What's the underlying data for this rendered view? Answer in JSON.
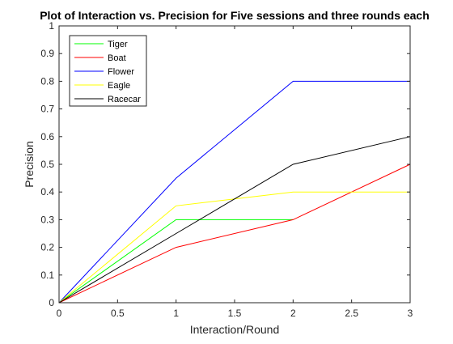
{
  "chart_data": {
    "type": "line",
    "title": "Plot of Interaction vs. Precision for Five sessions and three rounds each",
    "xlabel": "Interaction/Round",
    "ylabel": "Precision",
    "xlim": [
      0,
      3
    ],
    "ylim": [
      0,
      1
    ],
    "x_ticks": [
      0,
      0.5,
      1,
      1.5,
      2,
      2.5,
      3
    ],
    "x_tick_labels": [
      "0",
      "0.5",
      "1",
      "1.5",
      "2",
      "2.5",
      "3"
    ],
    "y_ticks": [
      0,
      0.1,
      0.2,
      0.3,
      0.4,
      0.5,
      0.6,
      0.7,
      0.8,
      0.9,
      1
    ],
    "y_tick_labels": [
      "0",
      "0.1",
      "0.2",
      "0.3",
      "0.4",
      "0.5",
      "0.6",
      "0.7",
      "0.8",
      "0.9",
      "1"
    ],
    "grid": false,
    "legend_position": "top-left",
    "series": [
      {
        "name": "Tiger",
        "color": "#00ff00",
        "x": [
          0,
          1,
          2
        ],
        "y": [
          0,
          0.3,
          0.3
        ]
      },
      {
        "name": "Boat",
        "color": "#ff0000",
        "x": [
          0,
          1,
          2,
          3
        ],
        "y": [
          0,
          0.2,
          0.3,
          0.5
        ]
      },
      {
        "name": "Flower",
        "color": "#0000ff",
        "x": [
          0,
          1,
          2,
          3
        ],
        "y": [
          0,
          0.45,
          0.8,
          0.8
        ]
      },
      {
        "name": "Eagle",
        "color": "#ffff00",
        "x": [
          0,
          1,
          2,
          3
        ],
        "y": [
          0,
          0.35,
          0.4,
          0.4
        ]
      },
      {
        "name": "Racecar",
        "color": "#000000",
        "x": [
          0,
          1,
          2,
          3
        ],
        "y": [
          0,
          0.25,
          0.5,
          0.6
        ]
      }
    ]
  }
}
